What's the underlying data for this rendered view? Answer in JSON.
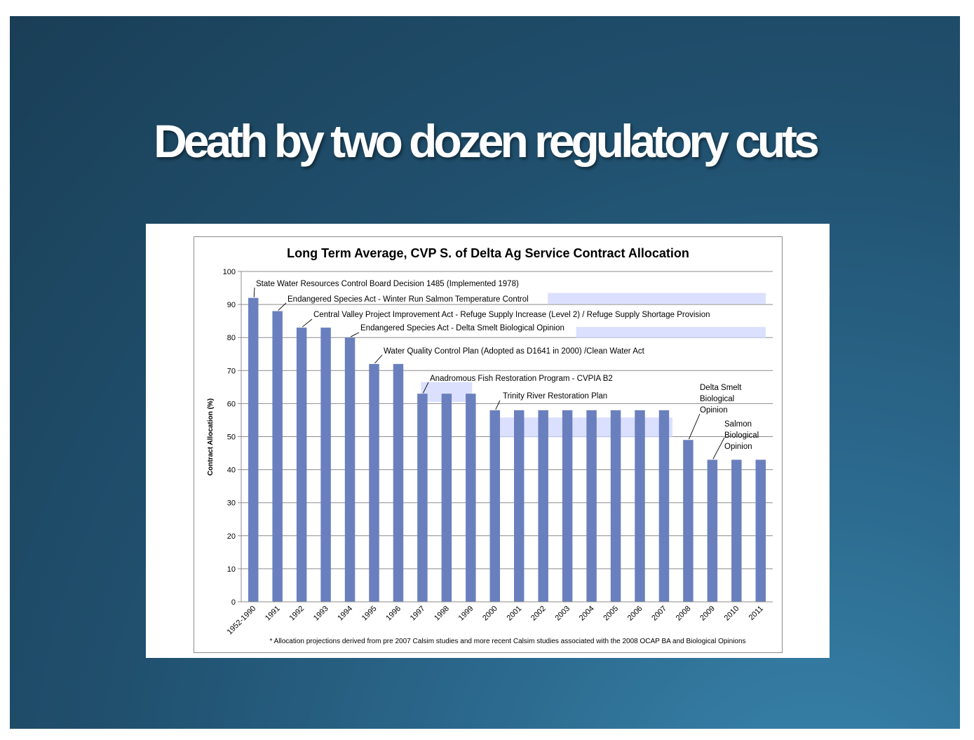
{
  "slide": {
    "title": "Death by two dozen regulatory cuts"
  },
  "chart_data": {
    "type": "bar",
    "title": "Long Term Average, CVP S. of Delta Ag Service Contract Allocation",
    "xlabel": "",
    "ylabel": "Contract Allocation (%)",
    "ylim": [
      0,
      100
    ],
    "yticks": [
      0,
      10,
      20,
      30,
      40,
      50,
      60,
      70,
      80,
      90,
      100
    ],
    "grid": true,
    "bar_color": "#6a7fbd",
    "categories": [
      "1952-1990",
      "1991",
      "1992",
      "1993",
      "1994",
      "1995",
      "1996",
      "1997",
      "1998",
      "1999",
      "2000",
      "2001",
      "2002",
      "2003",
      "2004",
      "2005",
      "2006",
      "2007",
      "2008",
      "2009",
      "2010",
      "2011"
    ],
    "values": [
      92,
      88,
      83,
      83,
      80,
      72,
      72,
      63,
      63,
      63,
      58,
      58,
      58,
      58,
      58,
      58,
      58,
      58,
      49,
      43,
      43,
      43
    ],
    "annotations": [
      {
        "category": "1952-1990",
        "value": 92,
        "lines": [
          "State Water Resources Control Board Decision 1485 (Implemented 1978)"
        ]
      },
      {
        "category": "1991",
        "value": 88,
        "lines": [
          "Endangered Species Act - Winter Run Salmon Temperature Control"
        ]
      },
      {
        "category": "1992",
        "value": 83,
        "lines": [
          "Central Valley Project Improvement Act - Refuge Supply Increase (Level 2) / Refuge Supply Shortage Provision"
        ]
      },
      {
        "category": "1994",
        "value": 80,
        "lines": [
          "Endangered Species Act - Delta Smelt Biological Opinion"
        ]
      },
      {
        "category": "1995",
        "value": 72,
        "lines": [
          "Water Quality Control Plan (Adopted as D1641 in 2000) /Clean Water Act"
        ]
      },
      {
        "category": "1997",
        "value": 63,
        "lines": [
          "Anadromous Fish Restoration Program - CVPIA B2"
        ]
      },
      {
        "category": "2000",
        "value": 58,
        "lines": [
          "Trinity River Restoration Plan"
        ]
      },
      {
        "category": "2008",
        "value": 49,
        "lines": [
          "Delta Smelt",
          "Biological",
          "Opinion"
        ]
      },
      {
        "category": "2009",
        "value": 43,
        "lines": [
          "Salmon",
          "Biological",
          "Opinion"
        ]
      }
    ],
    "footnote": "* Allocation projections derived from  pre 2007 Calsim studies and more recent Calsim studies associated with the 2008 OCAP BA and Biological Opinions"
  }
}
